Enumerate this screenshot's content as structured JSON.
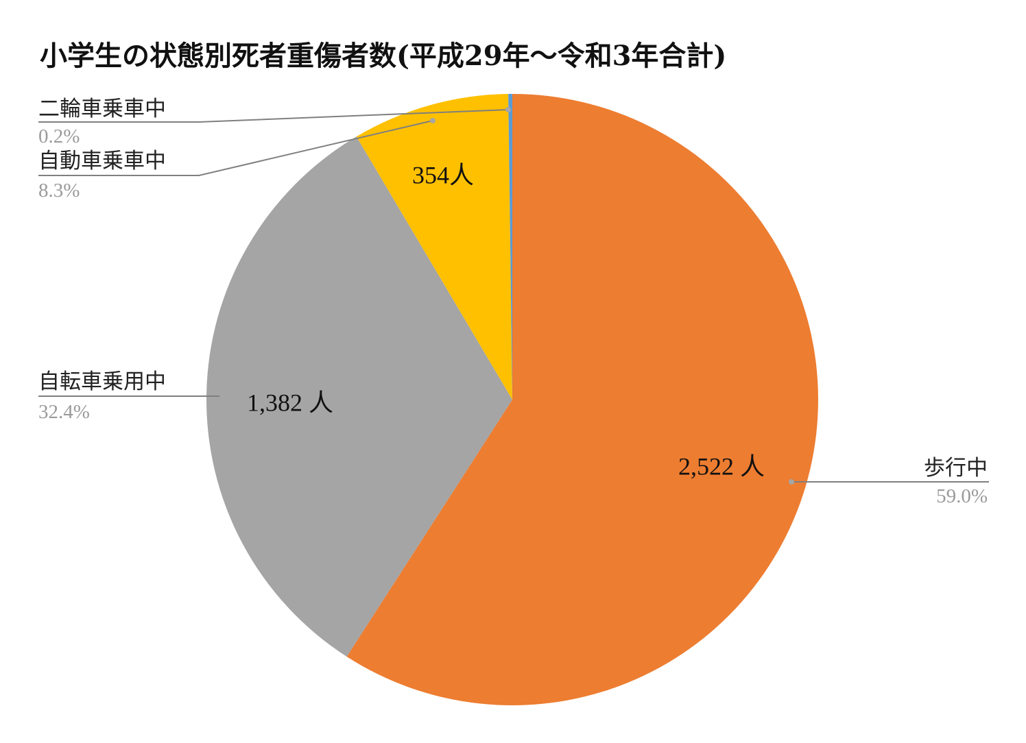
{
  "chart_data": {
    "type": "pie",
    "title": "小学生の状態別死者重傷者数(平成29年〜令和3年合計)",
    "start_angle_deg": 0,
    "direction": "clockwise",
    "slices": [
      {
        "name": "歩行中",
        "value": 2522,
        "value_label": "2,522 人",
        "percent_label": "59.0%",
        "color": "#ED7D31"
      },
      {
        "name": "自転車乗用中",
        "value": 1382,
        "value_label": "1,382 人",
        "percent_label": "32.4%",
        "color": "#A5A5A5"
      },
      {
        "name": "自動車乗車中",
        "value": 354,
        "value_label": "354人",
        "percent_label": "8.3%",
        "color": "#FFC000"
      },
      {
        "name": "二輪車乗車中",
        "value": 9,
        "value_label": "",
        "percent_label": "0.2%",
        "color": "#5B9BD5"
      }
    ]
  }
}
